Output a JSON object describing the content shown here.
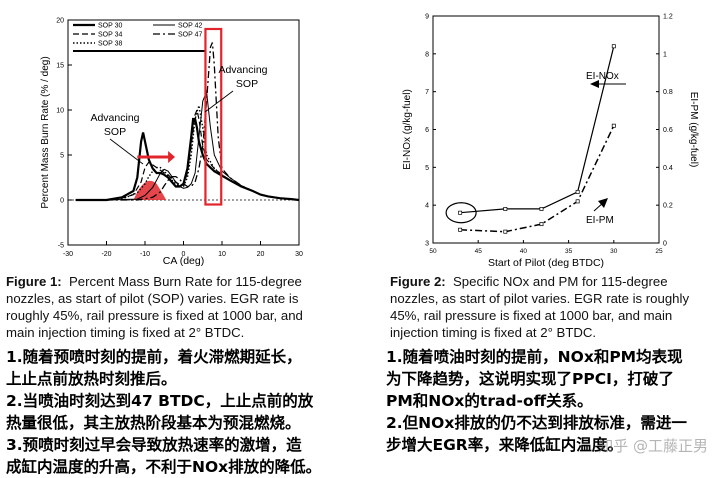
{
  "left_figure": {
    "caption_label": "Figure 1:",
    "caption_lines": [
      "Percent Mass Burn Rate for 115-degree",
      "nozzles, as start of pilot (SOP) varies.  EGR rate is",
      "roughly 45%, rail pressure is fixed at 1000 bar, and",
      "main injection timing is fixed at 2° BTDC."
    ],
    "annotations": {
      "advancing_left": [
        "Advancing",
        "SOP"
      ],
      "advancing_right": [
        "Advancing",
        "SOP"
      ]
    },
    "highlight_color": "#e0262c"
  },
  "right_figure": {
    "caption_label": "Figure 2:",
    "caption_lines": [
      "Specific NOx and PM for 115-degree",
      "nozzles, as start of pilot varies.  EGR rate is roughly",
      "45%, rail pressure is fixed at 1000 bar, and main",
      "injection timing is fixed at 2° BTDC."
    ],
    "annotations": {
      "nox": "EI-NOx",
      "pm": "EI-PM"
    }
  },
  "chart_data": [
    {
      "type": "line",
      "xlabel": "CA (deg)",
      "ylabel": "Percent Mass Burn Rate (% / deg)",
      "xlim": [
        -30,
        30
      ],
      "ylim": [
        -5,
        20
      ],
      "xticks": [
        -30,
        -20,
        -10,
        0,
        10,
        20,
        30
      ],
      "yticks": [
        -5,
        0,
        5,
        10,
        15,
        20
      ],
      "grid": false,
      "legend_position": "top-left",
      "series": [
        {
          "name": "SOP 30",
          "style": "solid-thick",
          "x": [
            -28,
            -20,
            -16,
            -13,
            -12,
            -11,
            -10.5,
            -10,
            -9,
            -8,
            -7,
            -6,
            -5,
            -4,
            -3,
            -2,
            -1,
            0,
            1,
            2,
            2.5,
            3,
            3.5,
            4,
            5,
            6,
            8,
            10,
            12,
            15,
            18,
            20,
            22,
            25,
            28,
            30
          ],
          "y": [
            0,
            0,
            0.3,
            1,
            2.5,
            6.5,
            7.5,
            6.5,
            4.5,
            3.5,
            3,
            3,
            2.8,
            2.5,
            2,
            1.5,
            1.5,
            1.8,
            3.5,
            7,
            9,
            9,
            8,
            6.5,
            5,
            4,
            3.2,
            2.7,
            2.2,
            1.5,
            1,
            0.6,
            0.4,
            0.2,
            0.1,
            0
          ]
        },
        {
          "name": "SOP 34",
          "style": "dashed",
          "x": [
            -28,
            -20,
            -16,
            -13,
            -11,
            -10,
            -9,
            -8,
            -7,
            -6,
            -5,
            -4,
            -3,
            -2,
            -1,
            0,
            1,
            2,
            3,
            3.5,
            4,
            5,
            6,
            8,
            10,
            12,
            15,
            18,
            20,
            22,
            25,
            28,
            30
          ],
          "y": [
            0,
            0,
            0.2,
            0.6,
            2,
            3.6,
            4.2,
            3.9,
            3.6,
            3.3,
            3,
            2.8,
            2.4,
            2,
            1.7,
            1.7,
            3,
            6,
            9.5,
            10,
            9,
            6,
            4.5,
            3.5,
            2.8,
            2.2,
            1.5,
            1,
            0.6,
            0.4,
            0.2,
            0.1,
            0
          ]
        },
        {
          "name": "SOP 38",
          "style": "dotted",
          "x": [
            -28,
            -20,
            -16,
            -12,
            -10,
            -9,
            -8,
            -7,
            -6,
            -5,
            -4,
            -3,
            -2,
            -1,
            0,
            1,
            2,
            3,
            4,
            5,
            6,
            8,
            10,
            12,
            15,
            18,
            20,
            22,
            25,
            28,
            30
          ],
          "y": [
            0,
            0,
            0.1,
            0.8,
            1.8,
            2.6,
            3.2,
            3.6,
            3.6,
            3.2,
            2.7,
            2.2,
            1.8,
            1.5,
            1.5,
            2.5,
            5,
            9,
            10.5,
            8,
            5,
            3.5,
            2.8,
            2.2,
            1.5,
            1,
            0.6,
            0.4,
            0.2,
            0.1,
            0
          ]
        },
        {
          "name": "SOP 42",
          "style": "solid-thin",
          "x": [
            -28,
            -20,
            -12,
            -10,
            -8,
            -7,
            -6,
            -5,
            -4,
            -3,
            -2,
            -1,
            0,
            1,
            2,
            3,
            4,
            5,
            6,
            7,
            8,
            10,
            12,
            15,
            18,
            20,
            22,
            25,
            28,
            30
          ],
          "y": [
            0,
            0,
            0.1,
            0.5,
            1.4,
            2.2,
            3,
            3.4,
            3.2,
            2.6,
            2,
            1.5,
            1.3,
            1.4,
            1.8,
            3,
            7,
            11,
            12,
            8,
            5,
            3.2,
            2.5,
            1.6,
            1,
            0.6,
            0.4,
            0.2,
            0.1,
            0
          ]
        },
        {
          "name": "SOP 47",
          "style": "dash-dot",
          "x": [
            -28,
            -20,
            -12,
            -8,
            -6,
            -5,
            -4,
            -3,
            -2,
            -1,
            0,
            1,
            2,
            3,
            4,
            5,
            6,
            7,
            7.5,
            8,
            9,
            10,
            12,
            15,
            18,
            20,
            22,
            25,
            28,
            30
          ],
          "y": [
            0,
            0,
            0,
            0.3,
            0.9,
            1.6,
            2.2,
            2.6,
            2.6,
            2.3,
            1.8,
            1.5,
            1.5,
            2,
            3.5,
            6,
            11,
            17,
            17.5,
            15,
            7,
            3.5,
            2.5,
            1.6,
            1,
            0.6,
            0.4,
            0.2,
            0.1,
            0
          ]
        }
      ]
    },
    {
      "type": "line",
      "xlabel": "Start of Pilot (deg BTDC)",
      "ylabel_left": "EI-NOx (g/kg-fuel)",
      "ylabel_right": "EI-PM (g/kg-fuel)",
      "xlim": [
        50,
        25
      ],
      "ylim_left": [
        3,
        9
      ],
      "ylim_right": [
        0,
        1.2
      ],
      "xticks": [
        50,
        45,
        40,
        35,
        30,
        25
      ],
      "yticks_left": [
        3,
        4,
        5,
        6,
        7,
        8,
        9
      ],
      "yticks_right": [
        0,
        0.2,
        0.4,
        0.6,
        0.8,
        1,
        1.2
      ],
      "grid": false,
      "series": [
        {
          "name": "EI-NOx",
          "axis": "left",
          "style": "solid",
          "x": [
            47,
            42,
            38,
            34,
            30
          ],
          "y": [
            3.8,
            3.9,
            3.9,
            4.35,
            8.2
          ]
        },
        {
          "name": "EI-PM",
          "axis": "right",
          "style": "dash-dot",
          "x": [
            47,
            42,
            38,
            34,
            30
          ],
          "y": [
            0.07,
            0.06,
            0.1,
            0.22,
            0.62
          ]
        }
      ]
    }
  ],
  "notes_left": [
    "1.随着预喷时刻的提前，着火滞燃期延长，",
    "上止点前放热时刻推后。",
    "2.当喷油时刻达到47 BTDC，上止点前的放",
    "热量很低，其主放热阶段基本为预混燃烧。",
    "3.预喷时刻过早会导致放热速率的激增，造",
    "成缸内温度的升高，不利于NOx排放的降低。"
  ],
  "notes_right": [
    "1.随着喷油时刻的提前，NOx和PM均表现",
    "为下降趋势，这说明实现了PPCI，打破了",
    "PM和NOx的trad-off关系。",
    "2.但NOx排放的仍不达到排放标准，需进一",
    "步增大EGR率，来降低缸内温度。"
  ],
  "watermark": "知乎 @工藤正男"
}
